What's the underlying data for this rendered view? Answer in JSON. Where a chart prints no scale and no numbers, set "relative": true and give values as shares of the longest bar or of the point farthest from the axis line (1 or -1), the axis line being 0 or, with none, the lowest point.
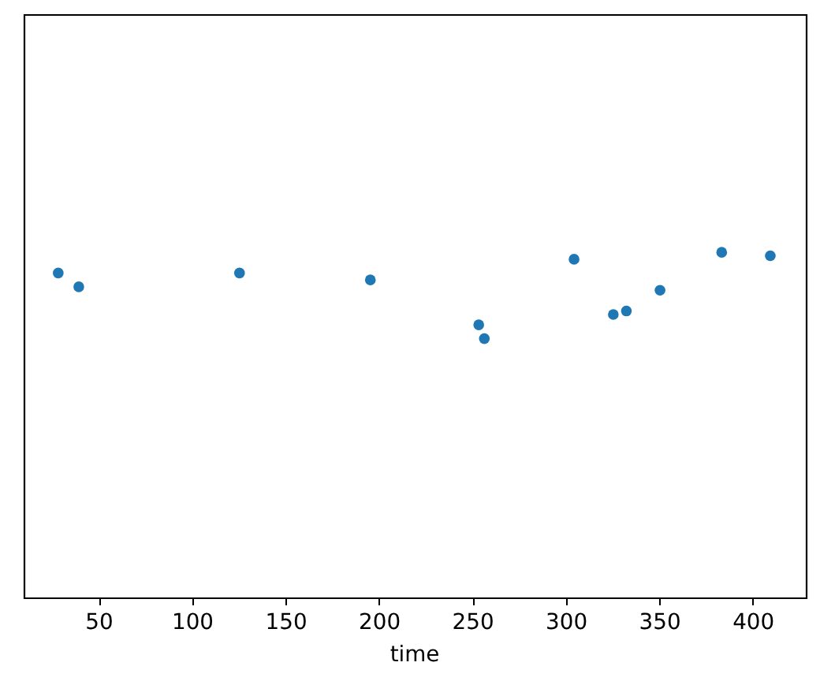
{
  "chart_data": {
    "type": "scatter",
    "xlabel": "time",
    "x": [
      28,
      39,
      125,
      195,
      253,
      256,
      304,
      325,
      332,
      350,
      383,
      409
    ],
    "values": [
      0.94,
      0.9,
      0.94,
      0.92,
      0.79,
      0.75,
      0.98,
      0.82,
      0.83,
      0.89,
      1,
      0.99
    ],
    "relative": true,
    "color": "#1f77b4",
    "marker": "circle",
    "xlim": [
      9.5,
      428
    ],
    "xticks": [
      50,
      100,
      150,
      200,
      250,
      300,
      350,
      400
    ],
    "grid": false,
    "legend": false
  }
}
